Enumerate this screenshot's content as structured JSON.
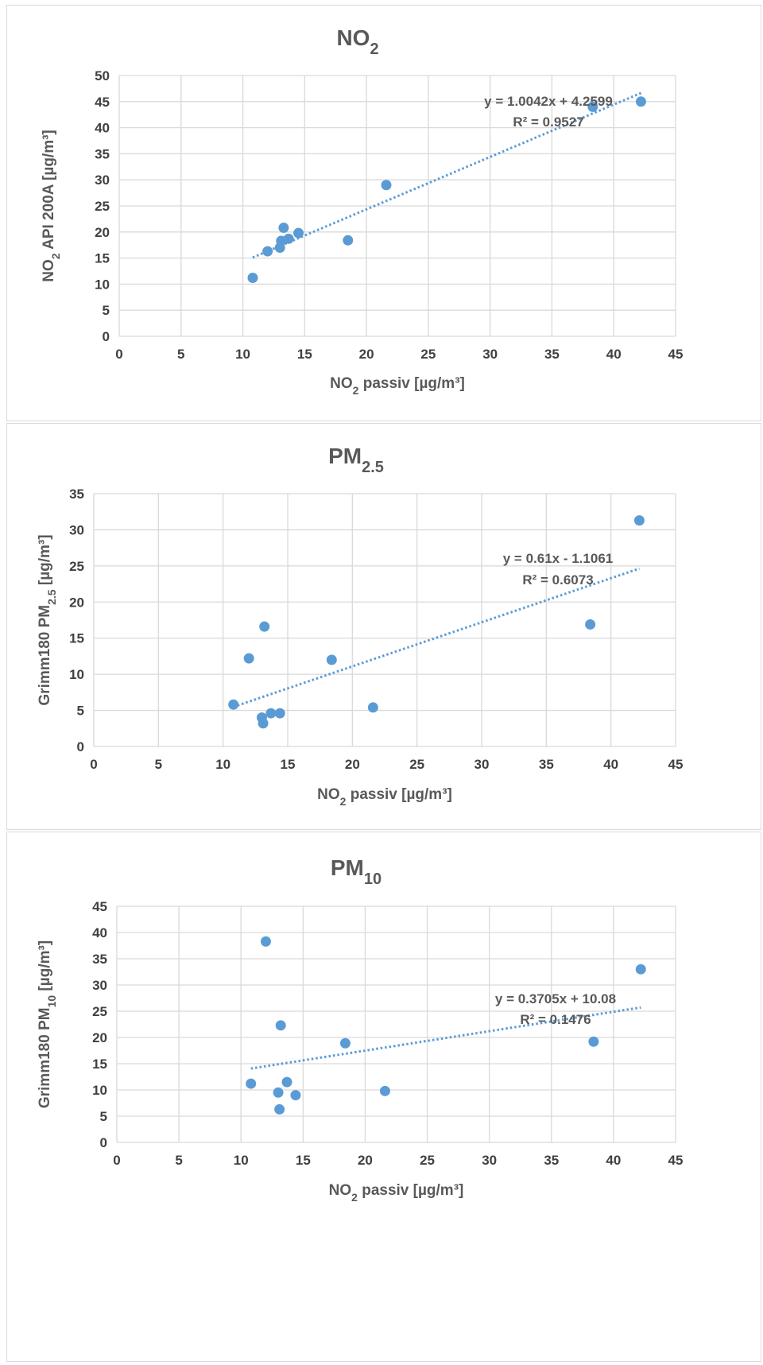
{
  "colors": {
    "series": "#5b9bd5",
    "grid": "#d9d9d9",
    "text": "#595959"
  },
  "chart_data": [
    {
      "type": "scatter",
      "title": {
        "main": "NO",
        "sub": "2"
      },
      "xlabel": {
        "a": "NO",
        "sub": "2",
        "b": " passiv [µg/m³]"
      },
      "ylabel": {
        "a": "NO",
        "sub": "2",
        "b": " API 200A [µg/m³]"
      },
      "xlim": [
        0,
        45
      ],
      "ylim": [
        0,
        50
      ],
      "xticks": [
        "0",
        "5",
        "10",
        "15",
        "20",
        "25",
        "30",
        "35",
        "40",
        "45"
      ],
      "yticks": [
        "0",
        "5",
        "10",
        "15",
        "20",
        "25",
        "30",
        "35",
        "40",
        "45",
        "50"
      ],
      "grid": true,
      "points": [
        {
          "x": 10.8,
          "y": 11.2
        },
        {
          "x": 12.0,
          "y": 16.3
        },
        {
          "x": 13.0,
          "y": 17.0
        },
        {
          "x": 13.1,
          "y": 18.3
        },
        {
          "x": 13.3,
          "y": 20.8
        },
        {
          "x": 13.7,
          "y": 18.7
        },
        {
          "x": 14.5,
          "y": 19.8
        },
        {
          "x": 18.5,
          "y": 18.4
        },
        {
          "x": 21.6,
          "y": 29.0
        },
        {
          "x": 38.3,
          "y": 44.0
        },
        {
          "x": 42.2,
          "y": 45.0
        }
      ],
      "trendline": {
        "slope": 1.0042,
        "intercept": 4.2599,
        "x_range": [
          10.8,
          42.2
        ]
      },
      "equation": "y = 1.0042x + 4.2599",
      "r2": "R² = 0.9527"
    },
    {
      "type": "scatter",
      "title": {
        "main": "PM",
        "sub": "2.5"
      },
      "xlabel": {
        "a": "NO",
        "sub": "2",
        "b": " passiv [µg/m³]"
      },
      "ylabel": {
        "a": "Grimm180 PM",
        "sub": "2.5",
        "b": " [µg/m³]"
      },
      "xlim": [
        0,
        45
      ],
      "ylim": [
        0,
        35
      ],
      "xticks": [
        "0",
        "5",
        "10",
        "15",
        "20",
        "25",
        "30",
        "35",
        "40",
        "45"
      ],
      "yticks": [
        "0",
        "5",
        "10",
        "15",
        "20",
        "25",
        "30",
        "35"
      ],
      "grid": true,
      "points": [
        {
          "x": 10.8,
          "y": 5.8
        },
        {
          "x": 12.0,
          "y": 12.2
        },
        {
          "x": 13.0,
          "y": 4.0
        },
        {
          "x": 13.1,
          "y": 3.2
        },
        {
          "x": 13.2,
          "y": 16.6
        },
        {
          "x": 13.7,
          "y": 4.6
        },
        {
          "x": 14.4,
          "y": 4.6
        },
        {
          "x": 18.4,
          "y": 12.0
        },
        {
          "x": 21.6,
          "y": 5.4
        },
        {
          "x": 38.4,
          "y": 16.9
        },
        {
          "x": 42.2,
          "y": 31.3
        }
      ],
      "trendline": {
        "slope": 0.61,
        "intercept": -1.1061,
        "x_range": [
          10.8,
          42.2
        ]
      },
      "equation": "y = 0.61x - 1.1061",
      "r2": "R² = 0.6073"
    },
    {
      "type": "scatter",
      "title": {
        "main": "PM",
        "sub": "10"
      },
      "xlabel": {
        "a": "NO",
        "sub": "2",
        "b": " passiv [µg/m³]"
      },
      "ylabel": {
        "a": "Grimm180 PM",
        "sub": "10",
        "b": " [µg/m³]"
      },
      "xlim": [
        0,
        45
      ],
      "ylim": [
        0,
        45
      ],
      "xticks": [
        "0",
        "5",
        "10",
        "15",
        "20",
        "25",
        "30",
        "35",
        "40",
        "45"
      ],
      "yticks": [
        "0",
        "5",
        "10",
        "15",
        "20",
        "25",
        "30",
        "35",
        "40",
        "45"
      ],
      "grid": true,
      "points": [
        {
          "x": 10.8,
          "y": 11.2
        },
        {
          "x": 12.0,
          "y": 38.3
        },
        {
          "x": 13.0,
          "y": 9.5
        },
        {
          "x": 13.1,
          "y": 6.3
        },
        {
          "x": 13.2,
          "y": 22.3
        },
        {
          "x": 13.7,
          "y": 11.5
        },
        {
          "x": 14.4,
          "y": 9.0
        },
        {
          "x": 18.4,
          "y": 18.9
        },
        {
          "x": 21.6,
          "y": 9.8
        },
        {
          "x": 38.4,
          "y": 19.2
        },
        {
          "x": 42.2,
          "y": 33.0
        }
      ],
      "trendline": {
        "slope": 0.3705,
        "intercept": 10.08,
        "x_range": [
          10.8,
          42.2
        ]
      },
      "equation": "y = 0.3705x + 10.08",
      "r2": "R² = 0.1476"
    }
  ]
}
